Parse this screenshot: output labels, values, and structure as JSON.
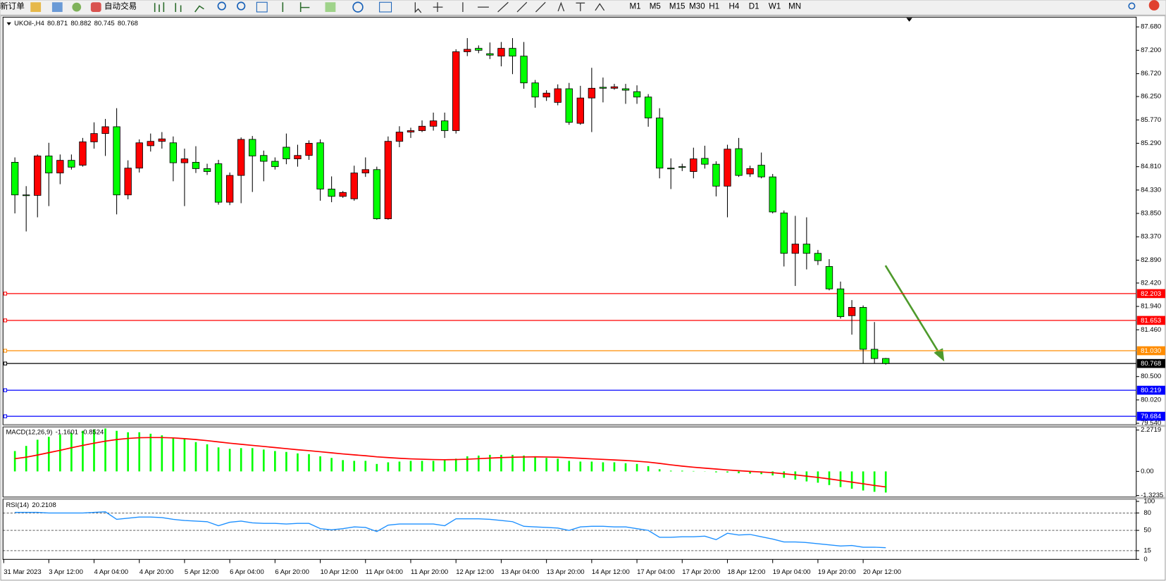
{
  "toolbar": {
    "new_order": "新订单",
    "auto_trading": "自动交易",
    "timeframes": [
      "M1",
      "M5",
      "M15",
      "M30",
      "H1",
      "H4",
      "D1",
      "W1",
      "MN"
    ]
  },
  "chart_data": [
    {
      "type": "candlestick",
      "title": "UKOil-,H4",
      "categories": [
        "31 Mar 2023",
        null,
        null,
        "3 Apr 12:00",
        null,
        null,
        null,
        "4 Apr 04:00",
        null,
        null,
        null,
        "4 Apr 20:00",
        null,
        null,
        null,
        "5 Apr 12:00",
        null,
        null,
        null,
        "6 Apr 04:00",
        null,
        null,
        null,
        "6 Apr 20:00",
        null,
        null,
        null,
        "10 Apr 12:00",
        null,
        null,
        null,
        "11 Apr 04:00",
        null,
        null,
        null,
        "11 Apr 20:00",
        null,
        null,
        null,
        "12 Apr 12:00",
        null,
        null,
        null,
        "13 Apr 04:00",
        null,
        null,
        null,
        "13 Apr 20:00",
        null,
        null,
        null,
        "14 Apr 12:00",
        null,
        null,
        null,
        "17 Apr 04:00",
        null,
        null,
        null,
        "17 Apr 20:00",
        null,
        null,
        null,
        "18 Apr 12:00",
        null,
        null,
        null,
        "19 Apr 04:00",
        null,
        null,
        null,
        "19 Apr 20:00",
        null,
        null,
        null,
        "20 Apr 12:00",
        null,
        null
      ],
      "open": [
        84.9,
        84.23,
        84.22,
        85.03,
        84.68,
        84.94,
        84.84,
        85.32,
        85.49,
        85.63,
        84.23,
        84.78,
        85.24,
        85.33,
        85.3,
        84.89,
        84.9,
        84.77,
        84.87,
        84.08,
        84.63,
        85.37,
        85.04,
        84.92,
        85.21,
        84.97,
        85.04,
        85.3,
        84.35,
        84.2,
        84.15,
        84.68,
        84.75,
        83.74,
        85.33,
        85.52,
        85.55,
        85.64,
        85.75,
        85.55,
        87.17,
        87.24,
        87.13,
        87.08,
        87.24,
        87.08,
        86.53,
        86.24,
        86.13,
        86.41,
        85.7,
        86.22,
        86.44,
        86.42,
        86.41,
        86.35,
        86.24,
        85.81,
        84.78,
        84.81,
        84.71,
        84.98,
        84.86,
        84.41,
        85.18,
        84.66,
        84.84,
        84.6,
        83.86,
        83.03,
        83.22,
        83.03,
        82.76,
        82.3,
        81.75,
        81.92,
        81.06,
        80.871
      ],
      "high": [
        85.0,
        84.41,
        85.06,
        85.3,
        85.06,
        85.06,
        85.4,
        85.72,
        85.79,
        86.01,
        84.94,
        85.37,
        85.49,
        85.52,
        85.43,
        85.18,
        85.23,
        84.87,
        84.95,
        84.69,
        85.41,
        85.44,
        85.14,
        85.0,
        85.49,
        85.26,
        85.35,
        85.37,
        84.61,
        84.31,
        84.83,
        85.0,
        84.81,
        85.43,
        85.64,
        85.61,
        85.76,
        85.92,
        85.92,
        87.22,
        87.45,
        87.3,
        87.36,
        87.37,
        87.45,
        87.37,
        86.59,
        86.38,
        86.5,
        86.53,
        86.47,
        86.84,
        86.64,
        86.51,
        86.51,
        86.48,
        86.3,
        86.01,
        84.98,
        84.87,
        85.2,
        85.24,
        84.92,
        85.26,
        85.4,
        84.83,
        85.1,
        84.66,
        83.91,
        83.8,
        83.77,
        83.1,
        82.91,
        82.45,
        82.07,
        81.96,
        81.62,
        80.882
      ],
      "low": [
        83.85,
        83.48,
        83.77,
        84.0,
        84.45,
        84.75,
        84.81,
        85.18,
        85.03,
        83.83,
        84.14,
        84.69,
        85.12,
        85.18,
        84.51,
        84.0,
        84.68,
        84.64,
        84.03,
        84.02,
        84.06,
        84.29,
        84.51,
        84.75,
        84.86,
        84.81,
        84.95,
        84.11,
        84.08,
        84.17,
        84.11,
        84.6,
        83.72,
        83.72,
        85.21,
        85.4,
        85.52,
        85.55,
        85.4,
        85.49,
        87.08,
        87.14,
        87.02,
        86.87,
        86.71,
        86.41,
        86.02,
        86.16,
        86.07,
        85.67,
        85.67,
        85.52,
        86.13,
        86.39,
        86.1,
        86.1,
        85.63,
        84.57,
        84.35,
        84.72,
        84.57,
        84.77,
        84.2,
        83.77,
        84.6,
        84.6,
        84.57,
        83.85,
        82.76,
        82.36,
        82.7,
        82.79,
        82.27,
        81.69,
        81.36,
        80.77,
        80.77,
        80.745
      ],
      "close": [
        84.23,
        84.22,
        85.03,
        84.68,
        84.94,
        84.8,
        85.32,
        85.49,
        85.63,
        84.23,
        84.78,
        85.3,
        85.33,
        85.38,
        84.89,
        84.97,
        84.77,
        84.71,
        84.08,
        84.63,
        85.37,
        85.03,
        84.92,
        84.81,
        84.97,
        85.04,
        85.29,
        84.35,
        84.2,
        84.28,
        84.68,
        84.75,
        83.74,
        85.33,
        85.52,
        85.55,
        85.64,
        85.75,
        85.55,
        87.17,
        87.22,
        87.2,
        87.1,
        87.24,
        87.08,
        86.53,
        86.24,
        86.32,
        86.41,
        85.72,
        86.22,
        86.42,
        86.42,
        86.45,
        86.38,
        86.24,
        85.81,
        84.78,
        84.77,
        84.8,
        84.97,
        84.86,
        84.41,
        85.17,
        84.63,
        84.77,
        84.6,
        83.88,
        83.03,
        83.22,
        83.03,
        82.88,
        82.3,
        81.73,
        81.92,
        81.06,
        80.87,
        80.768
      ],
      "up_color": "#ff0000",
      "down_color": "#00ff00",
      "ylim": [
        79.51,
        87.88
      ],
      "yticks": [
        {
          "value": 87.68,
          "label": "87.680"
        },
        {
          "value": 87.2,
          "label": "87.200"
        },
        {
          "value": 86.72,
          "label": "86.720"
        },
        {
          "value": 86.25,
          "label": "86.250"
        },
        {
          "value": 85.77,
          "label": "85.770"
        },
        {
          "value": 85.29,
          "label": "85.290"
        },
        {
          "value": 84.81,
          "label": "84.810"
        },
        {
          "value": 84.33,
          "label": "84.330"
        },
        {
          "value": 83.85,
          "label": "83.850"
        },
        {
          "value": 83.37,
          "label": "83.370"
        },
        {
          "value": 82.89,
          "label": "82.890"
        },
        {
          "value": 82.42,
          "label": "82.420"
        },
        {
          "value": 81.94,
          "label": "81.940"
        },
        {
          "value": 81.46,
          "label": "81.460"
        },
        {
          "value": 80.5,
          "label": "80.500"
        },
        {
          "value": 80.02,
          "label": "80.020"
        },
        {
          "value": 79.54,
          "label": "79.540"
        }
      ],
      "price_lines": [
        {
          "value": 82.203,
          "color": "#ff0000"
        },
        {
          "value": 81.653,
          "color": "#ff0000"
        },
        {
          "value": 81.03,
          "label": "81.030",
          "color": "#ff8c00"
        },
        {
          "value": 80.768,
          "color": "#000000"
        },
        {
          "value": 80.219,
          "color": "#0000ff"
        },
        {
          "value": 79.684,
          "color": "#0000ff"
        }
      ]
    },
    {
      "type": "macd",
      "title": "MACD(12,26,9)",
      "series": [
        {
          "type": "bar",
          "color": "#00ff00",
          "values": [
            1.12,
            1.4,
            1.74,
            1.9,
            2.02,
            2.11,
            2.23,
            2.31,
            2.36,
            2.23,
            2.15,
            2.15,
            2.07,
            1.98,
            1.82,
            1.78,
            1.61,
            1.49,
            1.32,
            1.24,
            1.28,
            1.28,
            1.2,
            1.12,
            1.07,
            0.99,
            0.95,
            0.83,
            0.74,
            0.62,
            0.58,
            0.58,
            0.41,
            0.5,
            0.54,
            0.58,
            0.58,
            0.58,
            0.62,
            0.7,
            0.83,
            0.87,
            0.91,
            0.91,
            0.91,
            0.87,
            0.83,
            0.74,
            0.7,
            0.58,
            0.54,
            0.54,
            0.5,
            0.5,
            0.45,
            0.41,
            0.29,
            0.12,
            0.04,
            0.04,
            0.02,
            0.01,
            -0.05,
            -0.06,
            -0.1,
            -0.12,
            -0.15,
            -0.22,
            -0.35,
            -0.45,
            -0.55,
            -0.62,
            -0.75,
            -0.86,
            -0.95,
            -1.05,
            -1.12,
            -1.1601
          ]
        },
        {
          "type": "line",
          "color": "#ff0000",
          "values": [
            0.7,
            0.78,
            0.9,
            1.03,
            1.16,
            1.3,
            1.43,
            1.55,
            1.66,
            1.75,
            1.81,
            1.85,
            1.86,
            1.86,
            1.84,
            1.8,
            1.75,
            1.69,
            1.62,
            1.55,
            1.49,
            1.43,
            1.37,
            1.31,
            1.25,
            1.19,
            1.14,
            1.08,
            1.02,
            0.96,
            0.91,
            0.86,
            0.8,
            0.76,
            0.72,
            0.69,
            0.67,
            0.65,
            0.64,
            0.65,
            0.67,
            0.7,
            0.73,
            0.76,
            0.78,
            0.79,
            0.8,
            0.79,
            0.78,
            0.75,
            0.72,
            0.69,
            0.66,
            0.63,
            0.6,
            0.56,
            0.51,
            0.44,
            0.36,
            0.29,
            0.23,
            0.18,
            0.13,
            0.08,
            0.04,
            0.0,
            -0.03,
            -0.07,
            -0.13,
            -0.19,
            -0.26,
            -0.33,
            -0.41,
            -0.5,
            -0.59,
            -0.68,
            -0.77,
            -0.8524
          ]
        }
      ],
      "ylim": [
        -1.4,
        2.44
      ],
      "yticks": [
        2.2719,
        {
          "value": 0,
          "label": "0.00"
        },
        -1.3235
      ]
    },
    {
      "type": "rsi",
      "title": "RSI(14)",
      "color": "#1e90ff",
      "values": [
        81,
        81,
        81,
        80,
        80,
        80,
        80,
        81,
        82,
        69,
        71,
        73,
        73,
        72,
        69,
        67,
        66,
        65,
        58,
        64,
        66,
        63,
        62,
        62,
        61,
        62,
        62,
        53,
        51,
        53,
        56,
        55,
        48,
        59,
        61,
        61,
        61,
        61,
        58,
        70,
        70,
        70,
        69,
        67,
        65,
        57,
        56,
        55,
        54,
        50,
        56,
        57,
        57,
        56,
        56,
        53,
        50,
        38,
        38,
        39,
        39,
        40,
        34,
        45,
        42,
        43,
        39,
        35,
        30,
        30,
        29,
        27,
        25,
        23,
        24,
        21,
        21,
        20.2108
      ],
      "ylim": [
        0,
        100
      ],
      "yticks": [
        100,
        80,
        50,
        15,
        0
      ]
    }
  ]
}
